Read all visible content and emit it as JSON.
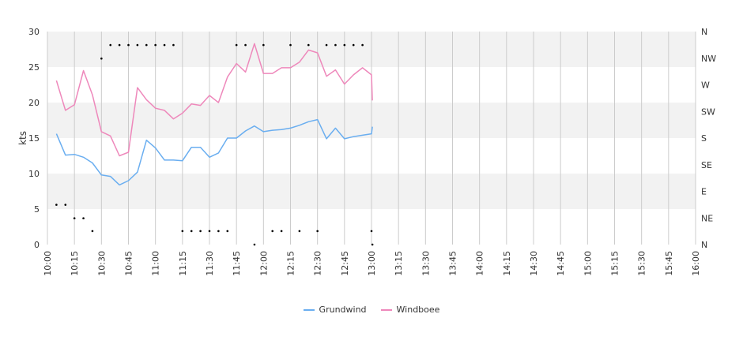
{
  "chart_data": {
    "type": "line",
    "ylabel": "kts",
    "ylim": [
      0,
      30
    ],
    "y_ticks": [
      "0",
      "5",
      "10",
      "15",
      "20",
      "25",
      "30"
    ],
    "direction_ticks": [
      "N",
      "NE",
      "E",
      "SE",
      "S",
      "SW",
      "W",
      "NW",
      "N"
    ],
    "x_ticks": [
      "10:00",
      "10:15",
      "10:30",
      "10:45",
      "11:00",
      "11:15",
      "11:30",
      "11:45",
      "12:00",
      "12:15",
      "12:30",
      "12:45",
      "13:00",
      "13:15",
      "13:30",
      "13:45",
      "14:00",
      "14:15",
      "14:30",
      "14:45",
      "15:00",
      "15:15",
      "15:30",
      "15:45",
      "16:00"
    ],
    "grid": true,
    "band_colors": [
      "#ffffff",
      "#f2f2f2"
    ],
    "legend_position": "bottom-center",
    "x": [
      5,
      10,
      15,
      20,
      25,
      30,
      35,
      40,
      45,
      50,
      55,
      60,
      65,
      70,
      75,
      80,
      85,
      90,
      95,
      100,
      105,
      110,
      115,
      120,
      125,
      130,
      135,
      140,
      145,
      150,
      155,
      160,
      165,
      170,
      175,
      180,
      185,
      190,
      195,
      200,
      205,
      210,
      215,
      220,
      225,
      230,
      235,
      240,
      245,
      250,
      255,
      260,
      265,
      270,
      275,
      280,
      285,
      290,
      295,
      300,
      305,
      310,
      315,
      320,
      325,
      330,
      335,
      340,
      345,
      350,
      355,
      360
    ],
    "x_unit": "minutes after 10:00",
    "series": [
      {
        "name": "Grundwind",
        "color": "#6aaef0",
        "points": [
          [
            5,
            15.6
          ],
          [
            10,
            12.6
          ],
          [
            15,
            12.7
          ],
          [
            20,
            12.3
          ],
          [
            25,
            11.5
          ],
          [
            30,
            9.8
          ],
          [
            35,
            9.6
          ],
          [
            40,
            8.4
          ],
          [
            45,
            9.0
          ],
          [
            50,
            10.2
          ],
          [
            55,
            14.7
          ],
          [
            60,
            13.6
          ],
          [
            65,
            11.9
          ],
          [
            70,
            11.9
          ],
          [
            75,
            11.8
          ],
          [
            80,
            13.7
          ],
          [
            85,
            13.7
          ],
          [
            90,
            12.3
          ],
          [
            95,
            12.9
          ],
          [
            100,
            15.0
          ],
          [
            105,
            15.0
          ],
          [
            110,
            16.0
          ],
          [
            115,
            16.7
          ],
          [
            120,
            15.9
          ],
          [
            125,
            16.1
          ],
          [
            130,
            16.2
          ],
          [
            135,
            16.4
          ],
          [
            140,
            16.8
          ],
          [
            145,
            17.3
          ],
          [
            150,
            17.6
          ],
          [
            155,
            14.9
          ],
          [
            160,
            16.4
          ],
          [
            165,
            14.9
          ],
          [
            170,
            15.2
          ],
          [
            175,
            15.4
          ],
          [
            180,
            15.6
          ],
          [
            180.5,
            16.6
          ]
        ]
      },
      {
        "name": "Windboee",
        "color": "#ee88bb",
        "points": [
          [
            5,
            23.1
          ],
          [
            10,
            18.9
          ],
          [
            15,
            19.7
          ],
          [
            20,
            24.5
          ],
          [
            25,
            21.1
          ],
          [
            30,
            15.9
          ],
          [
            35,
            15.3
          ],
          [
            40,
            12.5
          ],
          [
            45,
            13.0
          ],
          [
            50,
            22.1
          ],
          [
            55,
            20.4
          ],
          [
            60,
            19.2
          ],
          [
            65,
            18.9
          ],
          [
            70,
            17.7
          ],
          [
            75,
            18.5
          ],
          [
            80,
            19.8
          ],
          [
            85,
            19.6
          ],
          [
            90,
            21.0
          ],
          [
            95,
            20.0
          ],
          [
            100,
            23.6
          ],
          [
            105,
            25.5
          ],
          [
            110,
            24.3
          ],
          [
            115,
            28.3
          ],
          [
            120,
            24.1
          ],
          [
            125,
            24.1
          ],
          [
            130,
            24.9
          ],
          [
            135,
            24.9
          ],
          [
            140,
            25.7
          ],
          [
            145,
            27.4
          ],
          [
            150,
            27.0
          ],
          [
            155,
            23.7
          ],
          [
            160,
            24.6
          ],
          [
            165,
            22.6
          ],
          [
            170,
            23.9
          ],
          [
            175,
            24.9
          ],
          [
            180,
            23.9
          ],
          [
            180.5,
            20.3
          ]
        ]
      },
      {
        "name": "direction",
        "color": "#000000",
        "points": [
          [
            5,
            5.6
          ],
          [
            10,
            5.6
          ],
          [
            15,
            3.7
          ],
          [
            20,
            3.7
          ],
          [
            25,
            1.9
          ],
          [
            30,
            26.2
          ],
          [
            35,
            28.1
          ],
          [
            40,
            28.1
          ],
          [
            45,
            28.1
          ],
          [
            50,
            28.1
          ],
          [
            55,
            28.1
          ],
          [
            60,
            28.1
          ],
          [
            65,
            28.1
          ],
          [
            70,
            28.1
          ],
          [
            75,
            1.9
          ],
          [
            80,
            1.9
          ],
          [
            85,
            1.9
          ],
          [
            90,
            1.9
          ],
          [
            95,
            1.9
          ],
          [
            100,
            1.9
          ],
          [
            105,
            28.1
          ],
          [
            110,
            28.1
          ],
          [
            115,
            0
          ],
          [
            120,
            28.1
          ],
          [
            125,
            1.9
          ],
          [
            130,
            1.9
          ],
          [
            135,
            28.1
          ],
          [
            140,
            1.9
          ],
          [
            145,
            28.1
          ],
          [
            150,
            1.9
          ],
          [
            155,
            28.1
          ],
          [
            160,
            28.1
          ],
          [
            165,
            28.1
          ],
          [
            170,
            28.1
          ],
          [
            175,
            28.1
          ],
          [
            180,
            1.9
          ],
          [
            180.5,
            0
          ]
        ]
      }
    ]
  },
  "legend": [
    {
      "label": "Grundwind",
      "color": "#6aaef0"
    },
    {
      "label": "Windboee",
      "color": "#ee88bb"
    }
  ]
}
